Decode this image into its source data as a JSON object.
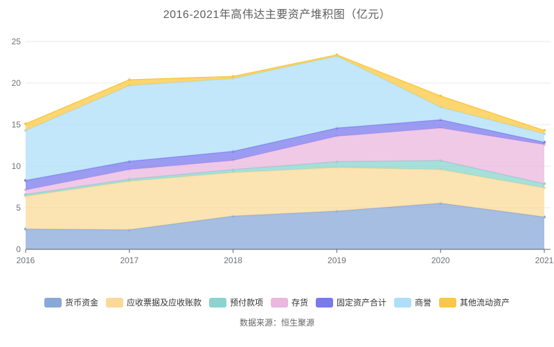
{
  "title": "2016-2021年高伟达主要资产堆积图（亿元）",
  "source": "数据来源：恒生聚源",
  "colors": {
    "title": "#5e5e5e",
    "axis_label": "#6e7079",
    "axis_line": "#5c6066",
    "gridline": "#e4e9f3",
    "legend_text": "#333333",
    "source_text": "#666666"
  },
  "chart_data": {
    "type": "area",
    "stacked": true,
    "title": "2016-2021年高伟达主要资产堆积图（亿元）",
    "xlabel": "",
    "ylabel": "",
    "x": [
      "2016",
      "2017",
      "2018",
      "2019",
      "2020",
      "2021"
    ],
    "series": [
      {
        "name": "货币资金",
        "color": "#88a8d8",
        "values": [
          2.45,
          2.35,
          4.0,
          4.6,
          5.55,
          3.9
        ]
      },
      {
        "name": "应收票据及应收账款",
        "color": "#fad998",
        "values": [
          3.95,
          5.85,
          5.25,
          5.25,
          4.05,
          3.5
        ]
      },
      {
        "name": "预付款项",
        "color": "#8ad4cd",
        "values": [
          0.2,
          0.25,
          0.35,
          0.7,
          1.1,
          0.5
        ]
      },
      {
        "name": "存货",
        "color": "#ebb7df",
        "values": [
          0.55,
          1.15,
          1.1,
          3.05,
          3.9,
          4.7
        ]
      },
      {
        "name": "固定资产合计",
        "color": "#7b79ee",
        "values": [
          1.15,
          1.0,
          1.1,
          1.0,
          1.0,
          0.3
        ]
      },
      {
        "name": "商誉",
        "color": "#afdff8",
        "values": [
          6.0,
          9.1,
          8.75,
          8.65,
          1.5,
          1.0
        ]
      },
      {
        "name": "其他流动资产",
        "color": "#fac842",
        "values": [
          0.8,
          0.7,
          0.25,
          0.15,
          1.35,
          0.4
        ]
      }
    ],
    "stack_totals": [
      15.1,
      20.4,
      20.8,
      23.4,
      18.45,
      14.3
    ],
    "ylim": [
      0,
      25
    ],
    "yticks": [
      0,
      5,
      10,
      15,
      20,
      25
    ],
    "grid": true,
    "legend_position": "bottom",
    "area_opacity": 0.75
  }
}
